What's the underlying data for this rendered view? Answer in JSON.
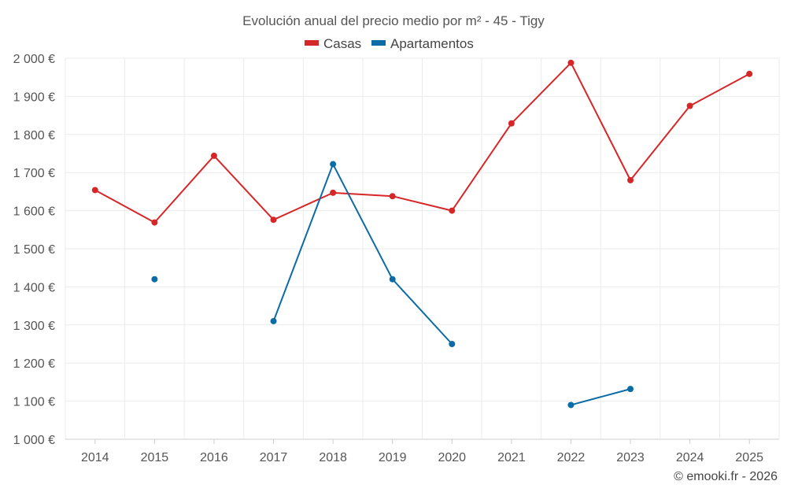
{
  "chart_data": {
    "type": "line",
    "title": "Evolución anual del precio medio por m² - 45 - Tigy",
    "xlabel": "",
    "ylabel": "",
    "categories": [
      "2014",
      "2015",
      "2016",
      "2017",
      "2018",
      "2019",
      "2020",
      "2021",
      "2022",
      "2023",
      "2024",
      "2025"
    ],
    "ylim": [
      1000,
      2000
    ],
    "yticks": [
      1000,
      1100,
      1200,
      1300,
      1400,
      1500,
      1600,
      1700,
      1800,
      1900,
      2000
    ],
    "ytick_labels": [
      "1 000 €",
      "1 100 €",
      "1 200 €",
      "1 300 €",
      "1 400 €",
      "1 500 €",
      "1 600 €",
      "1 700 €",
      "1 800 €",
      "1 900 €",
      "2 000 €"
    ],
    "grid": true,
    "legend_position": "top-center",
    "series": [
      {
        "name": "Casas",
        "color": "#d62728",
        "values": [
          1654,
          1569,
          1744,
          1576,
          1647,
          1638,
          1600,
          1829,
          1988,
          1680,
          1875,
          1959
        ]
      },
      {
        "name": "Apartamentos",
        "color": "#0b6ba6",
        "values": [
          null,
          1420,
          null,
          1310,
          1722,
          1420,
          1250,
          null,
          1090,
          1132,
          null,
          null
        ]
      }
    ],
    "credit": "© emooki.fr - 2026"
  }
}
